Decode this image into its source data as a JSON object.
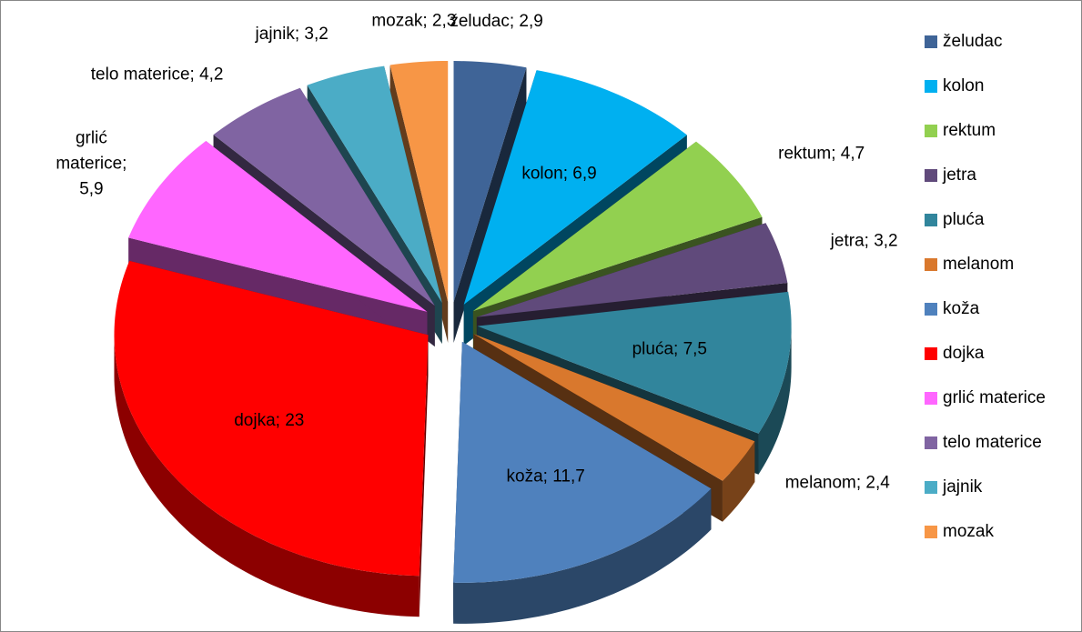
{
  "chart_data": {
    "type": "pie3d",
    "categories": [
      "želudac",
      "kolon",
      "rektum",
      "jetra",
      "pluća",
      "melanom",
      "koža",
      "dojka",
      "grlić materice",
      "telo materice",
      "jajnik",
      "mozak"
    ],
    "values": [
      2.9,
      6.9,
      4.7,
      3.2,
      7.5,
      2.4,
      11.7,
      23,
      5.9,
      4.2,
      3.2,
      2.3
    ],
    "value_labels": [
      "želudac; 2,9",
      "kolon; 6,9",
      "rektum; 4,7",
      "jetra; 3,2",
      "pluća; 7,5",
      "melanom; 2,4",
      "koža; 11,7",
      "dojka; 23",
      "grlić materice; 5,9",
      "telo materice; 4,2",
      "jajnik; 3,2",
      "mozak; 2,3"
    ],
    "colors": [
      "#3f6497",
      "#00b0f0",
      "#92d050",
      "#604a7b",
      "#31859c",
      "#d9782d",
      "#4f81bd",
      "#ff0000",
      "#ff66ff",
      "#8064a2",
      "#4bacc6",
      "#f79646"
    ],
    "legend": "right"
  }
}
